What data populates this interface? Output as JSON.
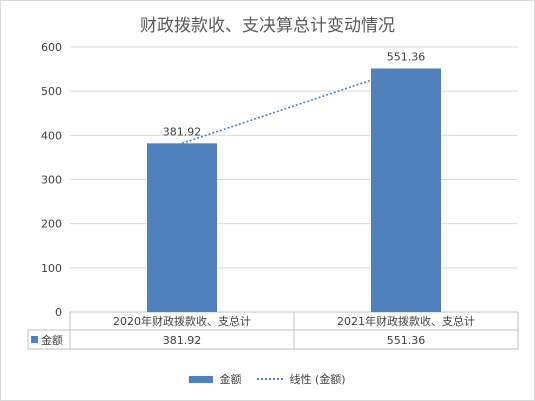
{
  "chart_data": {
    "type": "bar",
    "title": "财政拨款收、支决算总计变动情况",
    "categories": [
      "2020年财政拨款收、支总计",
      "2021年财政拨款收、支总计"
    ],
    "series": [
      {
        "name": "金额",
        "values": [
          381.92,
          551.36
        ],
        "color": "#4f81bd"
      }
    ],
    "trendline": {
      "name": "线性 (金额)",
      "type": "linear",
      "color": "#4f81bd",
      "style": "dotted"
    },
    "data_labels": [
      "381.92",
      "551.36"
    ],
    "ylim": [
      0,
      600
    ],
    "yticks": [
      0,
      100,
      200,
      300,
      400,
      500,
      600
    ],
    "grid": true,
    "data_table": {
      "row_label": "金额",
      "values": [
        "381.92",
        "551.36"
      ]
    },
    "legend": {
      "position": "bottom",
      "entries": [
        "金额",
        "线性 (金额)"
      ]
    }
  }
}
